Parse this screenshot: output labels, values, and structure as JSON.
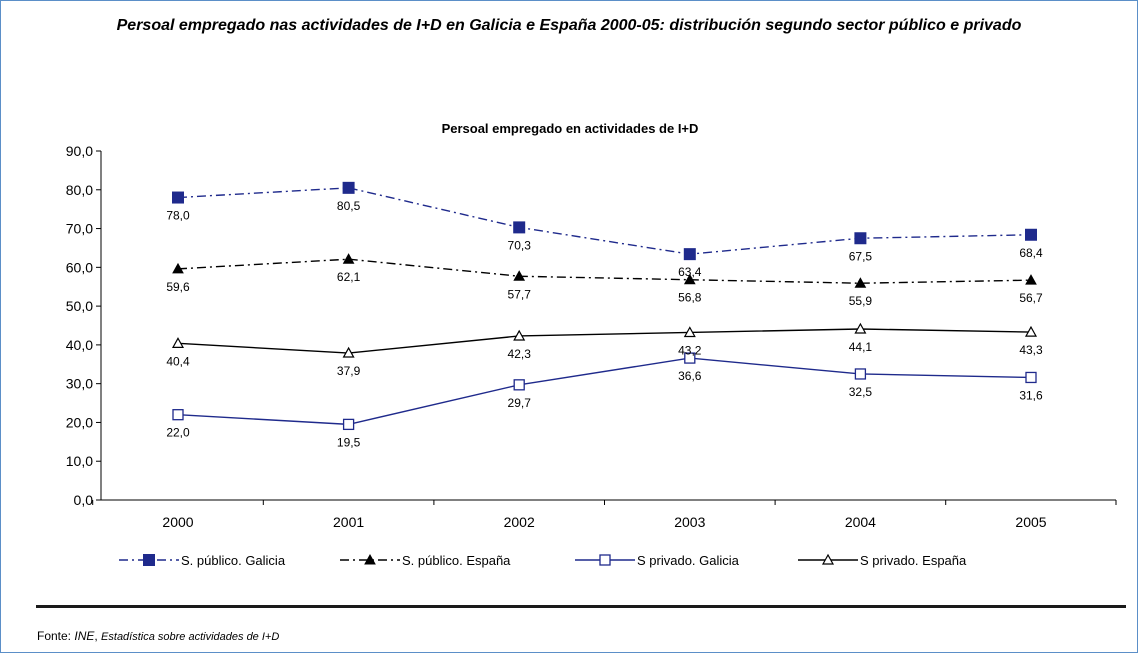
{
  "title": "Persoal empregado nas actividades de I+D en Galicia e España 2000-05: distribución segundo sector público e privado",
  "chart_data": {
    "type": "line",
    "title": "Persoal empregado en actividades de I+D",
    "x": [
      "2000",
      "2001",
      "2002",
      "2003",
      "2004",
      "2005"
    ],
    "ylim": [
      0,
      90
    ],
    "yticks": [
      "0,0",
      "10,0",
      "20,0",
      "30,0",
      "40,0",
      "50,0",
      "60,0",
      "70,0",
      "80,0",
      "90,0"
    ],
    "grid": false,
    "legend_position": "bottom",
    "series": [
      {
        "name": "S. público. Galicia",
        "values": [
          78.0,
          80.5,
          70.3,
          63.4,
          67.5,
          68.4
        ],
        "labels": [
          "78,0",
          "80,5",
          "70,3",
          "63,4",
          "67,5",
          "68,4"
        ],
        "color": "#1f2a8c",
        "marker": "filled-square",
        "line": "dashdot"
      },
      {
        "name": "S. público. España",
        "values": [
          59.6,
          62.1,
          57.7,
          56.8,
          55.9,
          56.7
        ],
        "labels": [
          "59,6",
          "62,1",
          "57,7",
          "56,8",
          "55,9",
          "56,7"
        ],
        "color": "#000000",
        "marker": "filled-triangle",
        "line": "dashdot"
      },
      {
        "name": "S privado. Galicia",
        "values": [
          22.0,
          19.5,
          29.7,
          36.6,
          32.5,
          31.6
        ],
        "labels": [
          "22,0",
          "19,5",
          "29,7",
          "36,6",
          "32,5",
          "31,6"
        ],
        "color": "#1f2a8c",
        "marker": "open-square",
        "line": "solid"
      },
      {
        "name": "S privado. España",
        "values": [
          40.4,
          37.9,
          42.3,
          43.2,
          44.1,
          43.3
        ],
        "labels": [
          "40,4",
          "37,9",
          "42,3",
          "43,2",
          "44,1",
          "43,3"
        ],
        "color": "#000000",
        "marker": "open-triangle",
        "line": "solid"
      }
    ]
  },
  "source": {
    "prefix": "Fonte: ",
    "name": "INE",
    "separator": ", ",
    "title": "Estadística sobre actividades de I+D"
  }
}
